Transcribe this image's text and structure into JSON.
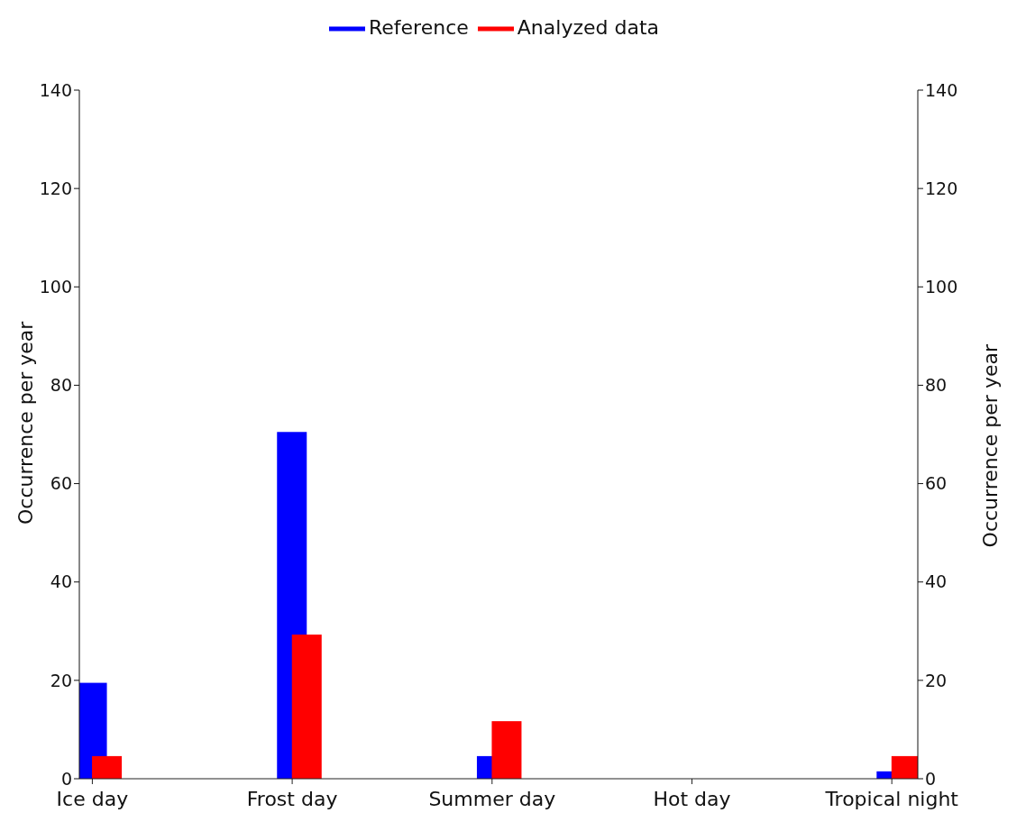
{
  "chart_data": {
    "type": "bar",
    "categories": [
      "Ice day",
      "Frost day",
      "Summer day",
      "Hot day",
      "Tropical night"
    ],
    "series": [
      {
        "name": "Reference",
        "color": "#0000ff",
        "values": [
          19.5,
          70.5,
          4.6,
          0,
          1.5
        ]
      },
      {
        "name": "Analyzed data",
        "color": "#ff0000",
        "values": [
          4.6,
          29.3,
          11.7,
          0,
          4.6
        ]
      }
    ],
    "ylabel": "Occurrence per year",
    "y2label": "Occurrence per year",
    "ylim": [
      0,
      140
    ],
    "yticks": [
      0,
      20,
      40,
      60,
      80,
      100,
      120,
      140
    ],
    "y2lim": [
      0,
      140
    ],
    "y2ticks": [
      0,
      20,
      40,
      60,
      80,
      100,
      120,
      140
    ],
    "legend": "top",
    "grid": false
  }
}
